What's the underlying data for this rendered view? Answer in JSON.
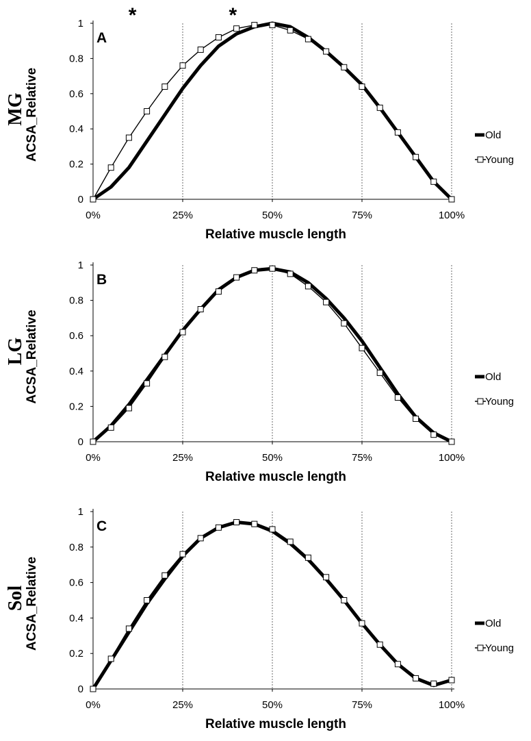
{
  "chart_data": [
    {
      "type": "line",
      "panel_label": "A",
      "muscle": "MG",
      "ylabel": "ACSA_Relative",
      "xlabel": "Relative muscle length",
      "y_ticks": [
        "0",
        "0.2",
        "0.4",
        "0.6",
        "0.8",
        "1"
      ],
      "x_ticks": [
        "0%",
        "25%",
        "50%",
        "75%",
        "100%"
      ],
      "ylim": [
        0,
        1
      ],
      "xlim": [
        0,
        100
      ],
      "vertical_gridlines": [
        25,
        50,
        75,
        100
      ],
      "significance_markers": [
        {
          "x": 11,
          "label": "*"
        },
        {
          "x": 39,
          "label": "*"
        }
      ],
      "legend": [
        "Old",
        "Young"
      ],
      "legend_position": "right",
      "series": [
        {
          "name": "Old",
          "style": "thick-line",
          "color": "#000000",
          "x": [
            0,
            5,
            10,
            15,
            20,
            25,
            30,
            35,
            40,
            45,
            50,
            55,
            60,
            65,
            70,
            75,
            80,
            85,
            90,
            95,
            100
          ],
          "y": [
            0,
            0.07,
            0.18,
            0.33,
            0.48,
            0.63,
            0.76,
            0.87,
            0.94,
            0.98,
            1.0,
            0.98,
            0.92,
            0.84,
            0.75,
            0.65,
            0.52,
            0.38,
            0.24,
            0.1,
            0
          ]
        },
        {
          "name": "Young",
          "style": "thin-line-square-markers",
          "color": "#000000",
          "x": [
            0,
            5,
            10,
            15,
            20,
            25,
            30,
            35,
            40,
            45,
            50,
            55,
            60,
            65,
            70,
            75,
            80,
            85,
            90,
            95,
            100
          ],
          "y": [
            0,
            0.18,
            0.35,
            0.5,
            0.64,
            0.76,
            0.85,
            0.92,
            0.97,
            0.99,
            0.99,
            0.96,
            0.91,
            0.84,
            0.75,
            0.64,
            0.52,
            0.38,
            0.24,
            0.1,
            0
          ]
        }
      ]
    },
    {
      "type": "line",
      "panel_label": "B",
      "muscle": "LG",
      "ylabel": "ACSA_Relative",
      "xlabel": "Relative muscle length",
      "y_ticks": [
        "0",
        "0.2",
        "0.4",
        "0.6",
        "0.8",
        "1"
      ],
      "x_ticks": [
        "0%",
        "25%",
        "50%",
        "75%",
        "100%"
      ],
      "ylim": [
        0,
        1
      ],
      "xlim": [
        0,
        100
      ],
      "vertical_gridlines": [
        25,
        50,
        75,
        100
      ],
      "significance_markers": [],
      "legend": [
        "Old",
        "Young"
      ],
      "legend_position": "right",
      "series": [
        {
          "name": "Old",
          "style": "thick-line",
          "color": "#000000",
          "x": [
            0,
            5,
            10,
            15,
            20,
            25,
            30,
            35,
            40,
            45,
            50,
            55,
            60,
            65,
            70,
            75,
            80,
            85,
            90,
            95,
            100
          ],
          "y": [
            0,
            0.09,
            0.21,
            0.35,
            0.49,
            0.63,
            0.75,
            0.86,
            0.93,
            0.97,
            0.98,
            0.96,
            0.9,
            0.81,
            0.7,
            0.57,
            0.42,
            0.27,
            0.14,
            0.05,
            0
          ]
        },
        {
          "name": "Young",
          "style": "thin-line-square-markers",
          "color": "#000000",
          "x": [
            0,
            5,
            10,
            15,
            20,
            25,
            30,
            35,
            40,
            45,
            50,
            55,
            60,
            65,
            70,
            75,
            80,
            85,
            90,
            95,
            100
          ],
          "y": [
            0,
            0.08,
            0.19,
            0.33,
            0.48,
            0.62,
            0.75,
            0.85,
            0.93,
            0.97,
            0.98,
            0.95,
            0.88,
            0.79,
            0.67,
            0.53,
            0.39,
            0.25,
            0.13,
            0.04,
            0
          ]
        }
      ]
    },
    {
      "type": "line",
      "panel_label": "C",
      "muscle": "Sol",
      "ylabel": "ACSA_Relative",
      "xlabel": "Relative muscle length",
      "y_ticks": [
        "0",
        "0.2",
        "0.4",
        "0.6",
        "0.8",
        "1"
      ],
      "x_ticks": [
        "0%",
        "25%",
        "50%",
        "75%",
        "100%"
      ],
      "ylim": [
        0,
        1
      ],
      "xlim": [
        0,
        100
      ],
      "vertical_gridlines": [
        25,
        50,
        75,
        100
      ],
      "significance_markers": [],
      "legend": [
        "Old",
        "Young"
      ],
      "legend_position": "right",
      "series": [
        {
          "name": "Old",
          "style": "thick-line",
          "color": "#000000",
          "x": [
            0,
            5,
            10,
            15,
            20,
            25,
            30,
            35,
            40,
            45,
            50,
            55,
            60,
            65,
            70,
            75,
            80,
            85,
            90,
            95,
            100
          ],
          "y": [
            0,
            0.16,
            0.32,
            0.48,
            0.62,
            0.75,
            0.85,
            0.91,
            0.94,
            0.93,
            0.89,
            0.82,
            0.73,
            0.62,
            0.5,
            0.37,
            0.25,
            0.14,
            0.06,
            0.02,
            0.05
          ]
        },
        {
          "name": "Young",
          "style": "thin-line-square-markers",
          "color": "#000000",
          "x": [
            0,
            5,
            10,
            15,
            20,
            25,
            30,
            35,
            40,
            45,
            50,
            55,
            60,
            65,
            70,
            75,
            80,
            85,
            90,
            95,
            100
          ],
          "y": [
            0,
            0.17,
            0.34,
            0.5,
            0.64,
            0.76,
            0.85,
            0.91,
            0.94,
            0.93,
            0.9,
            0.83,
            0.74,
            0.63,
            0.5,
            0.37,
            0.25,
            0.14,
            0.06,
            0.03,
            0.05
          ]
        }
      ]
    }
  ]
}
